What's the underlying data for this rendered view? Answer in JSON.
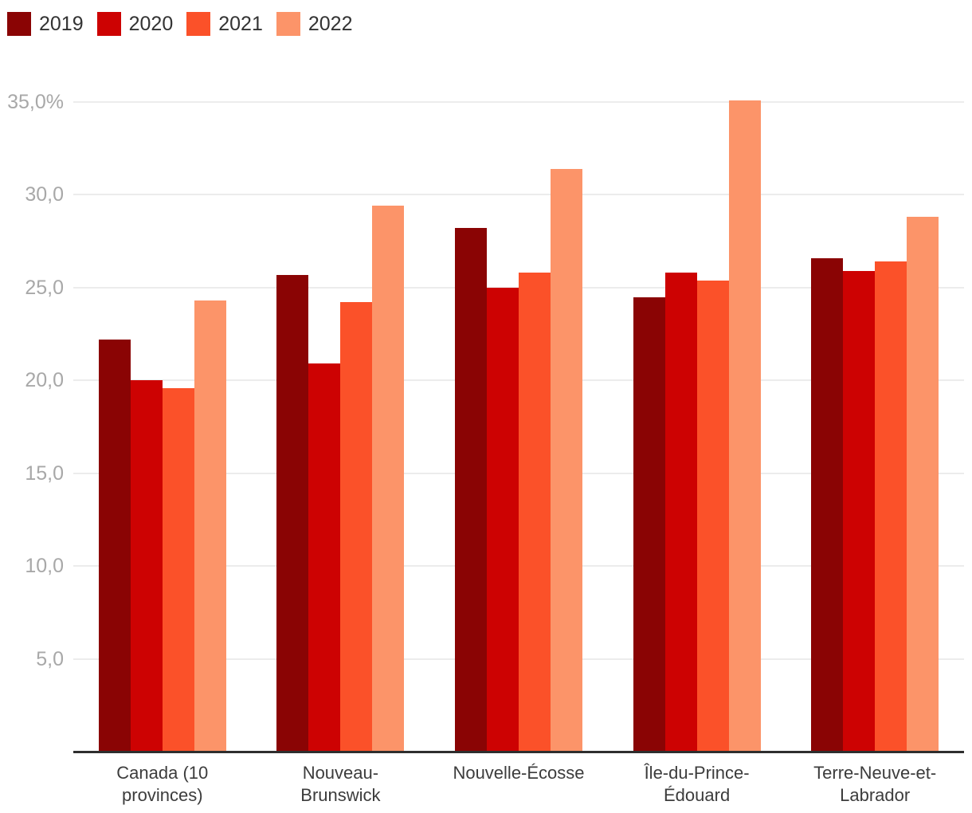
{
  "chart_data": {
    "type": "bar",
    "title": "",
    "xlabel": "",
    "ylabel": "",
    "value_format": "percent, French decimal comma",
    "ylim": [
      0,
      36.5
    ],
    "grid": "horizontal",
    "legend_position": "top-left",
    "categories": [
      "Canada (10 provinces)",
      "Nouveau-Brunswick",
      "Nouvelle-Écosse",
      "Île-du-Prince-Édouard",
      "Terre-Neuve-et-Labrador"
    ],
    "category_lines": [
      [
        "Canada (10",
        "provinces)"
      ],
      [
        "Nouveau-",
        "Brunswick"
      ],
      [
        "Nouvelle-Écosse"
      ],
      [
        "Île-du-Prince-",
        "Édouard"
      ],
      [
        "Terre-Neuve-et-",
        "Labrador"
      ]
    ],
    "series": [
      {
        "name": "2019",
        "color": "#8a0404",
        "values": [
          22.2,
          25.7,
          28.2,
          24.5,
          26.6
        ]
      },
      {
        "name": "2020",
        "color": "#cd0202",
        "values": [
          20.0,
          20.9,
          25.0,
          25.8,
          25.9
        ]
      },
      {
        "name": "2021",
        "color": "#fb5129",
        "values": [
          19.6,
          24.2,
          25.8,
          25.4,
          26.4
        ]
      },
      {
        "name": "2022",
        "color": "#fc9469",
        "values": [
          24.3,
          29.4,
          31.4,
          35.1,
          28.8
        ]
      }
    ],
    "y_ticks": [
      {
        "value": 5,
        "label": "5,0"
      },
      {
        "value": 10,
        "label": "10,0"
      },
      {
        "value": 15,
        "label": "15,0"
      },
      {
        "value": 20,
        "label": "20,0"
      },
      {
        "value": 25,
        "label": "25,0"
      },
      {
        "value": 30,
        "label": "30,0"
      },
      {
        "value": 35,
        "label": "35,0%"
      }
    ]
  },
  "colors": {
    "background": "#ffffff",
    "gridline": "#ececec",
    "axis_line": "#2e2e2e",
    "tick_label": "#a8a8a8",
    "category_label": "#3c3c3c",
    "legend_label": "#333333"
  }
}
